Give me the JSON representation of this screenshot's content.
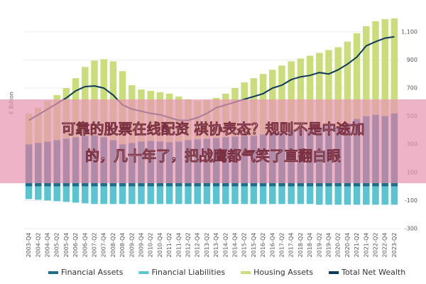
{
  "chart_data": {
    "type": "stacked_bar_line",
    "y_label": "€ Billion",
    "categories": [
      "2003-Q4",
      "2004-Q2",
      "2004-Q4",
      "2005-Q2",
      "2005-Q4",
      "2006-Q2",
      "2006-Q4",
      "2007-Q2",
      "2007-Q4",
      "2008-Q2",
      "2008-Q4",
      "2009-Q2",
      "2009-Q4",
      "2010-Q2",
      "2010-Q4",
      "2011-Q2",
      "2011-Q4",
      "2012-Q2",
      "2012-Q4",
      "2013-Q2",
      "2013-Q4",
      "2014-Q2",
      "2014-Q4",
      "2015-Q2",
      "2015-Q4",
      "2016-Q2",
      "2016-Q4",
      "2017-Q2",
      "2017-Q4",
      "2018-Q2",
      "2018-Q4",
      "2019-Q2",
      "2019-Q4",
      "2020-Q2",
      "2020-Q4",
      "2021-Q2",
      "2021-Q4",
      "2022-Q2",
      "2022-Q4",
      "2023-Q2"
    ],
    "series": [
      {
        "name": "Financial Assets",
        "color": "#1f6f8b",
        "kind": "bar",
        "values": [
          300,
          310,
          320,
          330,
          340,
          350,
          360,
          365,
          350,
          330,
          300,
          310,
          320,
          325,
          320,
          315,
          320,
          330,
          335,
          340,
          345,
          350,
          355,
          360,
          360,
          370,
          380,
          390,
          400,
          405,
          400,
          420,
          430,
          420,
          450,
          480,
          500,
          510,
          500,
          520
        ]
      },
      {
        "name": "Financial Liabilities",
        "color": "#5bc4d1",
        "kind": "bar",
        "values": [
          -90,
          -95,
          -100,
          -105,
          -110,
          -115,
          -120,
          -125,
          -125,
          -125,
          -125,
          -125,
          -125,
          -125,
          -125,
          -125,
          -125,
          -125,
          -125,
          -125,
          -125,
          -125,
          -125,
          -125,
          -125,
          -125,
          -125,
          -125,
          -125,
          -125,
          -125,
          -130,
          -130,
          -130,
          -130,
          -130,
          -130,
          -130,
          -130,
          -130
        ]
      },
      {
        "name": "Housing Assets",
        "color": "#c9dd7a",
        "kind": "bar",
        "values": [
          220,
          250,
          290,
          320,
          360,
          420,
          490,
          530,
          555,
          560,
          520,
          410,
          370,
          355,
          350,
          345,
          320,
          290,
          275,
          275,
          285,
          310,
          345,
          380,
          410,
          430,
          450,
          470,
          490,
          505,
          530,
          530,
          540,
          570,
          580,
          610,
          640,
          665,
          690,
          675
        ]
      },
      {
        "name": "Total Net Wealth",
        "color": "#0e3a5a",
        "kind": "line",
        "values": [
          470,
          510,
          550,
          590,
          630,
          680,
          710,
          715,
          700,
          650,
          580,
          550,
          535,
          520,
          510,
          490,
          470,
          470,
          490,
          520,
          560,
          580,
          600,
          620,
          640,
          660,
          700,
          720,
          760,
          780,
          790,
          810,
          800,
          830,
          870,
          920,
          1000,
          1030,
          1055,
          1065
        ]
      }
    ],
    "ylim": [
      -300,
      1200
    ],
    "yticks": [
      -300,
      -100,
      100,
      300,
      500,
      700,
      900,
      {
        "value": 1100,
        "label": "1,100"
      }
    ],
    "grid": true,
    "legend": "bottom"
  },
  "banner": {
    "lines": [
      "可靠的股票在线配资 棋协表态？规则不是中途加",
      "的，几十年了，把战鹰都气笑了直翻白眼"
    ]
  }
}
